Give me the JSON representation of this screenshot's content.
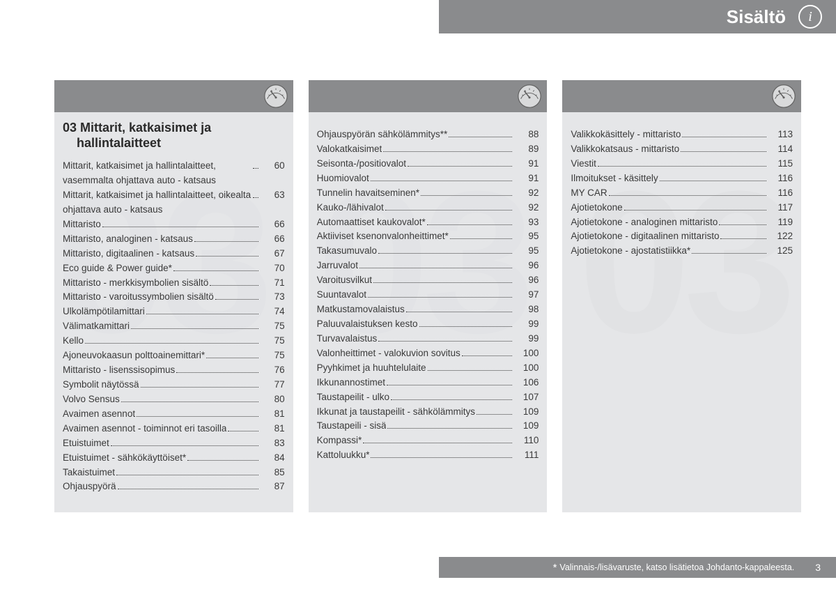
{
  "header": {
    "title": "Sisältö"
  },
  "watermark": "03",
  "section_title_line1": "03 Mittarit, katkaisimet ja",
  "section_title_line2": "hallintalaitteet",
  "columns": [
    {
      "has_title": true,
      "items": [
        {
          "label": "Mittarit, katkaisimet ja hallintalaitteet, vasemmalta ohjattava auto - katsaus",
          "page": "60"
        },
        {
          "label": "Mittarit, katkaisimet ja hallintalaitteet, oikealta ohjattava auto - katsaus",
          "page": "63"
        },
        {
          "label": "Mittaristo",
          "page": "66"
        },
        {
          "label": "Mittaristo, analoginen - katsaus",
          "page": "66"
        },
        {
          "label": "Mittaristo, digitaalinen - katsaus",
          "page": "67"
        },
        {
          "label": "Eco guide & Power guide*",
          "page": "70"
        },
        {
          "label": "Mittaristo - merkkisymbolien sisältö",
          "page": "71"
        },
        {
          "label": "Mittaristo - varoitussymbolien sisältö",
          "page": "73"
        },
        {
          "label": "Ulkolämpötilamittari",
          "page": "74"
        },
        {
          "label": "Välimatkamittari",
          "page": "75"
        },
        {
          "label": "Kello",
          "page": "75"
        },
        {
          "label": "Ajoneuvokaasun polttoainemittari*",
          "page": "75"
        },
        {
          "label": "Mittaristo - lisenssisopimus",
          "page": "76"
        },
        {
          "label": "Symbolit näytössä",
          "page": "77"
        },
        {
          "label": "Volvo Sensus",
          "page": "80"
        },
        {
          "label": "Avaimen asennot",
          "page": "81"
        },
        {
          "label": "Avaimen asennot - toiminnot eri tasoilla",
          "page": "81"
        },
        {
          "label": "Etuistuimet",
          "page": "83"
        },
        {
          "label": "Etuistuimet - sähkökäyttöiset*",
          "page": "84"
        },
        {
          "label": "Takaistuimet",
          "page": "85"
        },
        {
          "label": "Ohjauspyörä",
          "page": "87"
        }
      ]
    },
    {
      "has_title": false,
      "items": [
        {
          "label": "Ohjauspyörän sähkölämmitys**",
          "page": "88"
        },
        {
          "label": "Valokatkaisimet",
          "page": "89"
        },
        {
          "label": "Seisonta-/positiovalot",
          "page": "91"
        },
        {
          "label": "Huomiovalot",
          "page": "91"
        },
        {
          "label": "Tunnelin havaitseminen*",
          "page": "92"
        },
        {
          "label": "Kauko-/lähivalot",
          "page": "92"
        },
        {
          "label": "Automaattiset kaukovalot*",
          "page": "93"
        },
        {
          "label": "Aktiiviset ksenonvalonheittimet*",
          "page": "95"
        },
        {
          "label": "Takasumuvalo",
          "page": "95"
        },
        {
          "label": "Jarruvalot",
          "page": "96"
        },
        {
          "label": "Varoitusvilkut",
          "page": "96"
        },
        {
          "label": "Suuntavalot",
          "page": "97"
        },
        {
          "label": "Matkustamovalaistus",
          "page": "98"
        },
        {
          "label": "Paluuvalaistuksen kesto",
          "page": "99"
        },
        {
          "label": "Turvavalaistus",
          "page": "99"
        },
        {
          "label": "Valonheittimet - valokuvion sovitus",
          "page": "100"
        },
        {
          "label": "Pyyhkimet ja huuhtelulaite",
          "page": "100"
        },
        {
          "label": "Ikkunannostimet",
          "page": "106"
        },
        {
          "label": "Taustapeilit - ulko",
          "page": "107"
        },
        {
          "label": "Ikkunat ja taustapeilit - sähkölämmitys",
          "page": "109"
        },
        {
          "label": "Taustapeili - sisä",
          "page": "109"
        },
        {
          "label": "Kompassi*",
          "page": "110"
        },
        {
          "label": "Kattoluukku*",
          "page": "111"
        }
      ]
    },
    {
      "has_title": false,
      "items": [
        {
          "label": "Valikkokäsittely - mittaristo",
          "page": "113"
        },
        {
          "label": "Valikkokatsaus - mittaristo",
          "page": "114"
        },
        {
          "label": "Viestit",
          "page": "115"
        },
        {
          "label": "Ilmoitukset - käsittely",
          "page": "116"
        },
        {
          "label": "MY CAR",
          "page": "116"
        },
        {
          "label": "Ajotietokone",
          "page": "117"
        },
        {
          "label": "Ajotietokone - analoginen mittaristo",
          "page": "119"
        },
        {
          "label": "Ajotietokone - digitaalinen mittaristo",
          "page": "122"
        },
        {
          "label": "Ajotietokone - ajostatistiikka*",
          "page": "125"
        }
      ]
    }
  ],
  "footer": {
    "note": "Valinnais-/lisävaruste, katso lisätietoa Johdanto-kappaleesta.",
    "page": "3"
  },
  "colors": {
    "bar": "#8a8b8d",
    "panel": "#e1e2e4",
    "watermark": "#d5d6d8",
    "text": "#3a3a3a"
  }
}
